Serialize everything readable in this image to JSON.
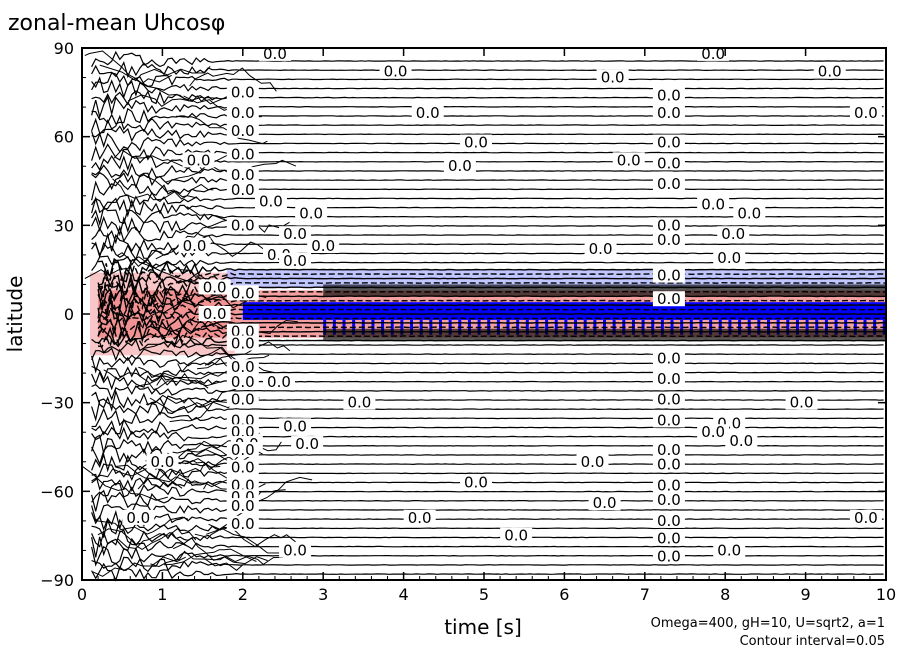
{
  "chart_data": {
    "type": "contour",
    "title": "zonal-mean Uhcosφ",
    "xlabel": "time [s]",
    "ylabel": "latitude",
    "xlim": [
      0,
      10
    ],
    "ylim": [
      -90,
      90
    ],
    "x_ticks": [
      "0",
      "1",
      "2",
      "3",
      "4",
      "5",
      "6",
      "7",
      "8",
      "9",
      "10"
    ],
    "y_ticks": [
      "−90",
      "−60",
      "−30",
      "0",
      "30",
      "60",
      "90"
    ],
    "contour_label": "0.0",
    "contour_interval": 0.05,
    "parameters_text": "Omega=400, gH=10, U=sqrt2, a=1",
    "interval_text": "Contour interval=0.05",
    "colors": {
      "positive": "#f08080",
      "negative": "#0000ff",
      "weak_negative": "#b0b8ff",
      "lines": "#000000"
    },
    "positive_band": {
      "lat_min": -8,
      "lat_max": 8,
      "t_start": 0.2
    },
    "negative_band": {
      "lat_min": -2,
      "lat_max": 4,
      "t_start": 2.0
    },
    "zero_labels": [
      [
        2.4,
        88
      ],
      [
        3.9,
        82
      ],
      [
        6.6,
        80
      ],
      [
        7.85,
        88
      ],
      [
        9.3,
        82
      ],
      [
        2.0,
        75
      ],
      [
        4.3,
        68
      ],
      [
        7.3,
        74
      ],
      [
        2.0,
        68
      ],
      [
        9.75,
        68
      ],
      [
        2.0,
        62
      ],
      [
        4.9,
        58
      ],
      [
        7.3,
        68
      ],
      [
        2.0,
        54
      ],
      [
        1.45,
        52
      ],
      [
        4.7,
        50
      ],
      [
        6.8,
        52
      ],
      [
        7.3,
        58
      ],
      [
        2.0,
        47
      ],
      [
        7.3,
        51
      ],
      [
        2.0,
        42
      ],
      [
        7.3,
        44
      ],
      [
        2.35,
        38
      ],
      [
        2.85,
        34
      ],
      [
        7.85,
        37
      ],
      [
        8.3,
        34
      ],
      [
        2.0,
        30
      ],
      [
        7.3,
        30
      ],
      [
        2.65,
        27
      ],
      [
        8.1,
        27
      ],
      [
        7.3,
        25
      ],
      [
        3.0,
        23
      ],
      [
        1.4,
        23
      ],
      [
        6.45,
        22
      ],
      [
        2.45,
        20
      ],
      [
        8.05,
        19
      ],
      [
        2.65,
        18
      ],
      [
        7.3,
        13
      ],
      [
        1.65,
        9
      ],
      [
        2.0,
        7
      ],
      [
        7.3,
        5
      ],
      [
        1.65,
        0
      ],
      [
        2.0,
        -6
      ],
      [
        2.0,
        -10
      ],
      [
        7.3,
        -15
      ],
      [
        2.0,
        -18
      ],
      [
        7.3,
        -22
      ],
      [
        2.0,
        -23
      ],
      [
        2.45,
        -23
      ],
      [
        7.3,
        -29
      ],
      [
        2.0,
        -29
      ],
      [
        3.45,
        -30
      ],
      [
        7.3,
        -36
      ],
      [
        8.95,
        -30
      ],
      [
        2.0,
        -36
      ],
      [
        2.65,
        -38
      ],
      [
        8.05,
        -37
      ],
      [
        2.0,
        -40
      ],
      [
        7.85,
        -40
      ],
      [
        2.05,
        -44
      ],
      [
        2.8,
        -44
      ],
      [
        8.2,
        -43
      ],
      [
        7.3,
        -46
      ],
      [
        2.0,
        -46
      ],
      [
        6.35,
        -50
      ],
      [
        1.0,
        -50
      ],
      [
        7.3,
        -51
      ],
      [
        2.0,
        -52
      ],
      [
        4.9,
        -57
      ],
      [
        7.3,
        -58
      ],
      [
        2.0,
        -58
      ],
      [
        7.3,
        -63
      ],
      [
        2.0,
        -62
      ],
      [
        6.5,
        -64
      ],
      [
        2.0,
        -65
      ],
      [
        4.2,
        -69
      ],
      [
        0.7,
        -69
      ],
      [
        7.3,
        -70
      ],
      [
        2.0,
        -71
      ],
      [
        9.75,
        -69
      ],
      [
        5.4,
        -75
      ],
      [
        7.3,
        -76
      ],
      [
        2.65,
        -80
      ],
      [
        7.3,
        -82
      ],
      [
        8.05,
        -80
      ]
    ]
  }
}
